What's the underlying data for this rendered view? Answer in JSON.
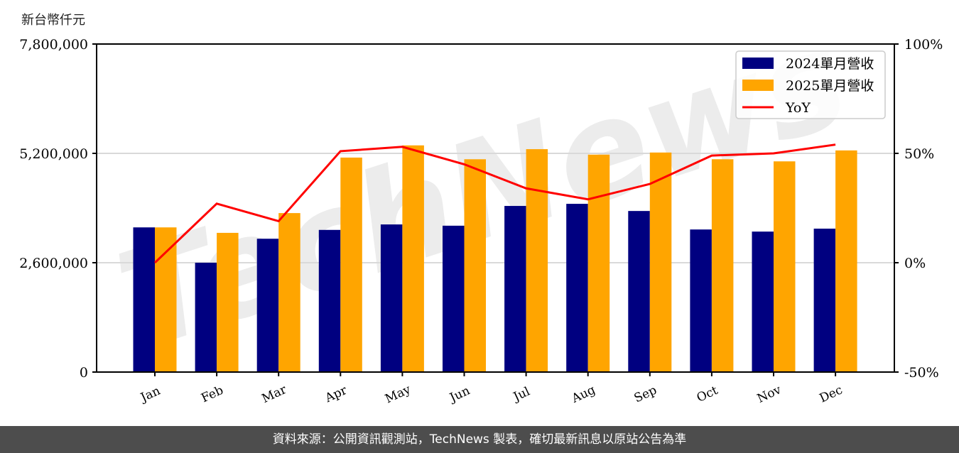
{
  "header": {
    "unit_label": "新台幣仟元"
  },
  "footer": {
    "source_text": "資料來源：公開資訊觀測站，TechNews 製表，確切最新訊息以原站公告為準"
  },
  "colors": {
    "series_2024": "#000080",
    "series_2025": "#ffa500",
    "yoy": "#ff0000",
    "grid": "#d9d9d9",
    "footer_bg": "#4d4d4d"
  },
  "legend": {
    "items": [
      {
        "label": "2024單月營收",
        "type": "bar",
        "color": "#000080"
      },
      {
        "label": "2025單月營收",
        "type": "bar",
        "color": "#ffa500"
      },
      {
        "label": "YoY",
        "type": "line",
        "color": "#ff0000"
      }
    ]
  },
  "watermark": "TechNews",
  "chart_data": {
    "type": "bar",
    "title": "",
    "xlabel": "",
    "ylabel": "新台幣仟元",
    "y2label": "",
    "categories": [
      "Jan",
      "Feb",
      "Mar",
      "Apr",
      "May",
      "Jun",
      "Jul",
      "Aug",
      "Sep",
      "Oct",
      "Nov",
      "Dec"
    ],
    "series": [
      {
        "name": "2024單月營收",
        "type": "bar",
        "axis": "left",
        "values": [
          3440000,
          2600000,
          3170000,
          3380000,
          3510000,
          3480000,
          3950000,
          4000000,
          3830000,
          3390000,
          3340000,
          3410000
        ]
      },
      {
        "name": "2025單月營收",
        "type": "bar",
        "axis": "left",
        "values": [
          3440000,
          3310000,
          3780000,
          5100000,
          5390000,
          5060000,
          5300000,
          5170000,
          5220000,
          5060000,
          5010000,
          5270000
        ]
      },
      {
        "name": "YoY",
        "type": "line",
        "axis": "right",
        "unit": "%",
        "values": [
          0,
          27,
          19,
          51,
          53,
          45,
          34,
          29,
          36,
          49,
          50,
          54
        ]
      }
    ],
    "ylim": [
      0,
      7800000
    ],
    "yticks": [
      0,
      2600000,
      5200000,
      7800000
    ],
    "ytick_labels": [
      "0",
      "2,600,000",
      "5,200,000",
      "7,800,000"
    ],
    "y2lim": [
      -50,
      100
    ],
    "y2ticks": [
      -50,
      0,
      50,
      100
    ],
    "y2tick_labels": [
      "-50%",
      "0%",
      "50%",
      "100%"
    ],
    "grid": "horizontal",
    "legend_position": "upper right"
  }
}
